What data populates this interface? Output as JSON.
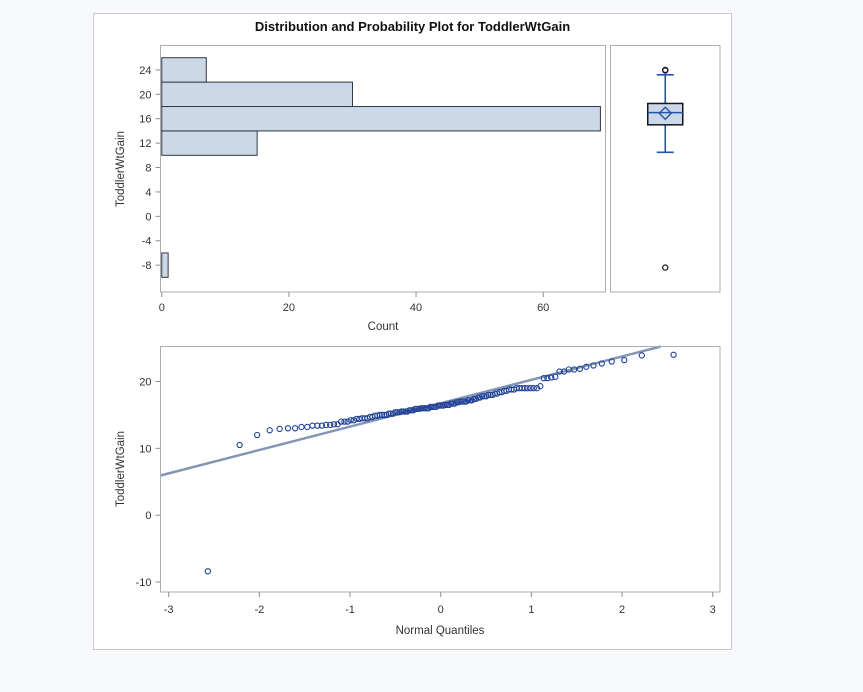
{
  "title": "Distribution and Probability Plot for ToddlerWtGain",
  "colors": {
    "page_bg": "#f7f9fc",
    "panel_bg": "#ffffff",
    "panel_border": "#c9c9c9",
    "frame": "#adadad",
    "tick": "#8e8e8e",
    "text": "#333333",
    "title_text": "#111111",
    "bar_fill": "#ccd7e8",
    "bar_stroke": "#2e3a47",
    "box_fill": "#ccd7e8",
    "box_stroke": "#11161d",
    "box_blue": "#2456a8",
    "outlier": "#11161d",
    "marker": "#1f4096",
    "ref_line": "#8295b5"
  },
  "chart_data": [
    {
      "type": "bar",
      "name": "histogram",
      "orientation": "horizontal",
      "xlabel": "Count",
      "ylabel": "ToddlerWtGain",
      "bin_width": 4,
      "categories": [
        -8,
        -4,
        0,
        4,
        8,
        12,
        16,
        20,
        24
      ],
      "values": [
        1,
        0,
        0,
        0,
        0,
        15,
        69,
        30,
        7
      ],
      "xticks": [
        0,
        20,
        40,
        60
      ],
      "yticks": [
        24,
        20,
        16,
        12,
        8,
        4,
        0,
        -4,
        -8
      ],
      "xlim": [
        -0.2,
        69.8
      ],
      "ylim": [
        -12.4,
        28
      ],
      "grid": false
    },
    {
      "type": "boxplot",
      "name": "boxplot",
      "orientation": "vertical",
      "stats": {
        "whisker_low": 10.5,
        "q1": 15,
        "median": 17,
        "q3": 18.5,
        "whisker_high": 23.2,
        "mean": 16.9,
        "outliers": [
          23.9,
          24,
          -8.4
        ]
      },
      "ylim": [
        -12.4,
        28
      ],
      "grid": false
    },
    {
      "type": "scatter",
      "name": "normal-probability-plot",
      "xlabel": "Normal Quantiles",
      "ylabel": "ToddlerWtGain",
      "xticks": [
        -3,
        -2,
        -1,
        0,
        1,
        2,
        3
      ],
      "yticks": [
        20,
        10,
        0,
        -10
      ],
      "xlim": [
        -3.09,
        3.08
      ],
      "ylim": [
        -11.5,
        25.24
      ],
      "grid": false,
      "quantile_method": "blom",
      "reference_line": {
        "intercept": 16.75,
        "slope": 3.5
      },
      "values": [
        -8.4,
        10.5,
        12,
        12.7,
        12.9,
        13,
        13,
        13.2,
        13.2,
        13.4,
        13.4,
        13.4,
        13.5,
        13.5,
        13.6,
        13.6,
        14,
        14,
        14,
        14.2,
        14.2,
        14.4,
        14.4,
        14.5,
        14.5,
        14.5,
        14.7,
        14.7,
        14.9,
        14.9,
        15,
        15,
        15,
        15,
        15.2,
        15.2,
        15.2,
        15.4,
        15.4,
        15.4,
        15.5,
        15.5,
        15.5,
        15.5,
        15.7,
        15.7,
        15.7,
        15.9,
        15.9,
        15.9,
        16,
        16,
        16,
        16,
        16,
        16.2,
        16.2,
        16.2,
        16.2,
        16.4,
        16.4,
        16.4,
        16.4,
        16.5,
        16.5,
        16.5,
        16.7,
        16.7,
        16.7,
        16.9,
        16.9,
        17,
        17,
        17,
        17,
        17.2,
        17.2,
        17.2,
        17.4,
        17.4,
        17.6,
        17.6,
        17.8,
        17.8,
        17.8,
        18,
        18,
        18,
        18.2,
        18.2,
        18.4,
        18.4,
        18.6,
        18.6,
        18.8,
        18.8,
        18.8,
        19,
        19,
        19,
        19,
        19,
        19,
        19,
        19,
        19.3,
        20.5,
        20.5,
        20.6,
        20.7,
        21.5,
        21.5,
        21.8,
        21.8,
        21.9,
        22.2,
        22.4,
        22.7,
        23,
        23.2,
        23.9,
        24
      ]
    }
  ]
}
